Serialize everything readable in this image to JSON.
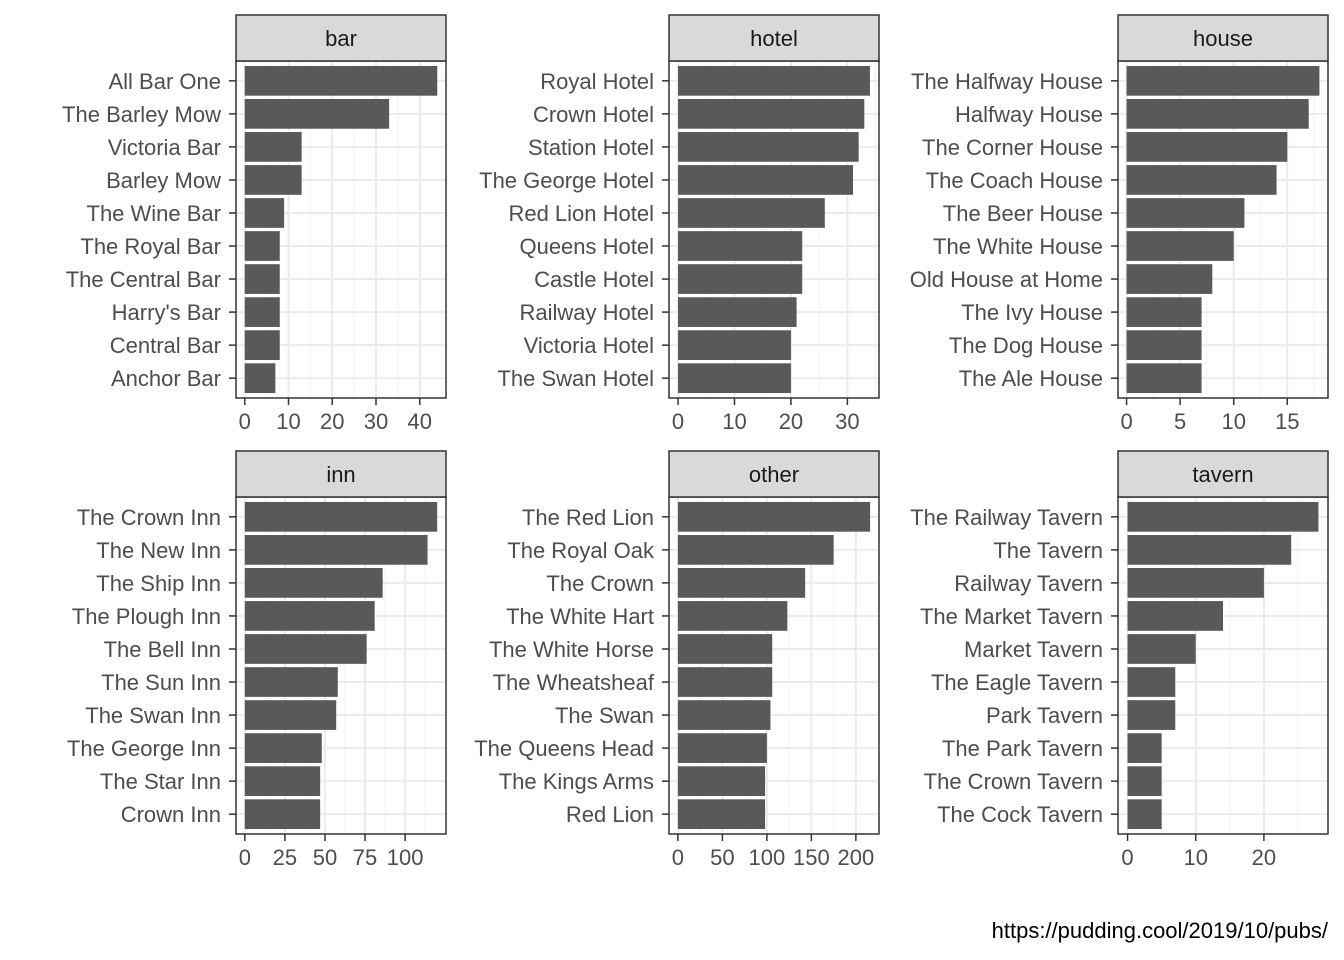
{
  "chart_data": [
    {
      "type": "bar",
      "orientation": "horizontal",
      "facet": "bar",
      "categories": [
        "All Bar One",
        "The Barley Mow",
        "Victoria Bar",
        "Barley Mow",
        "The Wine Bar",
        "The Royal Bar",
        "The Central Bar",
        "Harry's Bar",
        "Central Bar",
        "Anchor Bar"
      ],
      "values": [
        44,
        33,
        13,
        13,
        9,
        8,
        8,
        8,
        8,
        7
      ],
      "xlim": [
        -2,
        46
      ],
      "ticks": [
        0,
        10,
        20,
        30,
        40
      ],
      "minor_ticks": [
        5,
        15,
        25,
        35,
        45
      ]
    },
    {
      "type": "bar",
      "orientation": "horizontal",
      "facet": "hotel",
      "categories": [
        "Royal Hotel",
        "Crown Hotel",
        "Station Hotel",
        "The George Hotel",
        "Red Lion Hotel",
        "Queens Hotel",
        "Castle Hotel",
        "Railway Hotel",
        "Victoria Hotel",
        "The Swan Hotel"
      ],
      "values": [
        34,
        33,
        32,
        31,
        26,
        22,
        22,
        21,
        20,
        20
      ],
      "xlim": [
        -1.6,
        35.6
      ],
      "ticks": [
        0,
        10,
        20,
        30
      ],
      "minor_ticks": [
        5,
        15,
        25,
        35
      ]
    },
    {
      "type": "bar",
      "orientation": "horizontal",
      "facet": "house",
      "categories": [
        "The Halfway House",
        "Halfway House",
        "The Corner House",
        "The Coach House",
        "The Beer House",
        "The White House",
        "Old House at Home",
        "The Ivy House",
        "The Dog House",
        "The Ale House"
      ],
      "values": [
        18,
        17,
        15,
        14,
        11,
        10,
        8,
        7,
        7,
        7
      ],
      "xlim": [
        -0.8,
        18.8
      ],
      "ticks": [
        0,
        5,
        10,
        15
      ],
      "minor_ticks": [
        2.5,
        7.5,
        12.5,
        17.5
      ]
    },
    {
      "type": "bar",
      "orientation": "horizontal",
      "facet": "inn",
      "categories": [
        "The Crown Inn",
        "The New Inn",
        "The Ship Inn",
        "The Plough Inn",
        "The Bell Inn",
        "The Sun Inn",
        "The Swan Inn",
        "The George Inn",
        "The Star Inn",
        "Crown Inn"
      ],
      "values": [
        120,
        114,
        86,
        81,
        76,
        58,
        57,
        48,
        47,
        47
      ],
      "xlim": [
        -5.5,
        125.5
      ],
      "ticks": [
        0,
        25,
        50,
        75,
        100
      ],
      "minor_ticks": [
        12.5,
        37.5,
        62.5,
        87.5,
        112.5
      ]
    },
    {
      "type": "bar",
      "orientation": "horizontal",
      "facet": "other",
      "categories": [
        "The Red Lion",
        "The Royal Oak",
        "The Crown",
        "The White Hart",
        "The White Horse",
        "The Wheatsheaf",
        "The Swan",
        "The Queens Head",
        "The Kings Arms",
        "Red Lion"
      ],
      "values": [
        216,
        175,
        143,
        123,
        106,
        106,
        104,
        100,
        98,
        98
      ],
      "xlim": [
        -10,
        226
      ],
      "ticks": [
        0,
        50,
        100,
        150,
        200
      ],
      "minor_ticks": [
        25,
        75,
        125,
        175,
        225
      ]
    },
    {
      "type": "bar",
      "orientation": "horizontal",
      "facet": "tavern",
      "categories": [
        "The Railway Tavern",
        "The Tavern",
        "Railway Tavern",
        "The Market Tavern",
        "Market Tavern",
        "The Eagle Tavern",
        "Park Tavern",
        "The Park Tavern",
        "The Crown Tavern",
        "The Cock Tavern"
      ],
      "values": [
        28,
        24,
        20,
        14,
        10,
        7,
        7,
        5,
        5,
        5
      ],
      "xlim": [
        -1.4,
        29.4
      ],
      "ticks": [
        0,
        10,
        20
      ],
      "minor_ticks": [
        5,
        15,
        25
      ]
    }
  ],
  "colors": {
    "bar": "#595959",
    "strip_fill": "#d9d9d9",
    "panel_border": "#333333",
    "grid_major": "#ebebeb",
    "grid_minor": "#f5f5f5",
    "text": "#4d4d4d"
  },
  "caption": "https://pudding.cool/2019/10/pubs/"
}
